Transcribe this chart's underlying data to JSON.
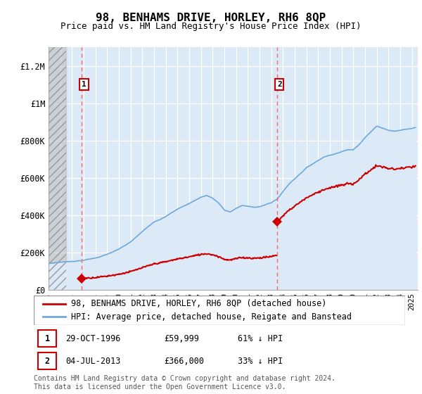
{
  "title": "98, BENHAMS DRIVE, HORLEY, RH6 8QP",
  "subtitle": "Price paid vs. HM Land Registry's House Price Index (HPI)",
  "ylabel_values": [
    "£0",
    "£200K",
    "£400K",
    "£600K",
    "£800K",
    "£1M",
    "£1.2M"
  ],
  "yticks": [
    0,
    200000,
    400000,
    600000,
    800000,
    1000000,
    1200000
  ],
  "ylim": [
    0,
    1300000
  ],
  "xlim_start": 1994.0,
  "xlim_end": 2025.5,
  "sale1_date": 1996.83,
  "sale1_price": 59999,
  "sale1_label": "1",
  "sale2_date": 2013.5,
  "sale2_price": 366000,
  "sale2_label": "2",
  "sale1_text": "29-OCT-1996",
  "sale1_price_text": "£59,999",
  "sale1_hpi_text": "61% ↓ HPI",
  "sale2_text": "04-JUL-2013",
  "sale2_price_text": "£366,000",
  "sale2_hpi_text": "33% ↓ HPI",
  "legend_line1": "98, BENHAMS DRIVE, HORLEY, RH6 8QP (detached house)",
  "legend_line2": "HPI: Average price, detached house, Reigate and Banstead",
  "footer": "Contains HM Land Registry data © Crown copyright and database right 2024.\nThis data is licensed under the Open Government Licence v3.0.",
  "hpi_color": "#6fa8dc",
  "hpi_fill_color": "#dce9f7",
  "price_color": "#cc0000",
  "sale_marker_color": "#cc0000",
  "dashed_line_color": "#ff6666",
  "hatch_color": "#cccccc"
}
